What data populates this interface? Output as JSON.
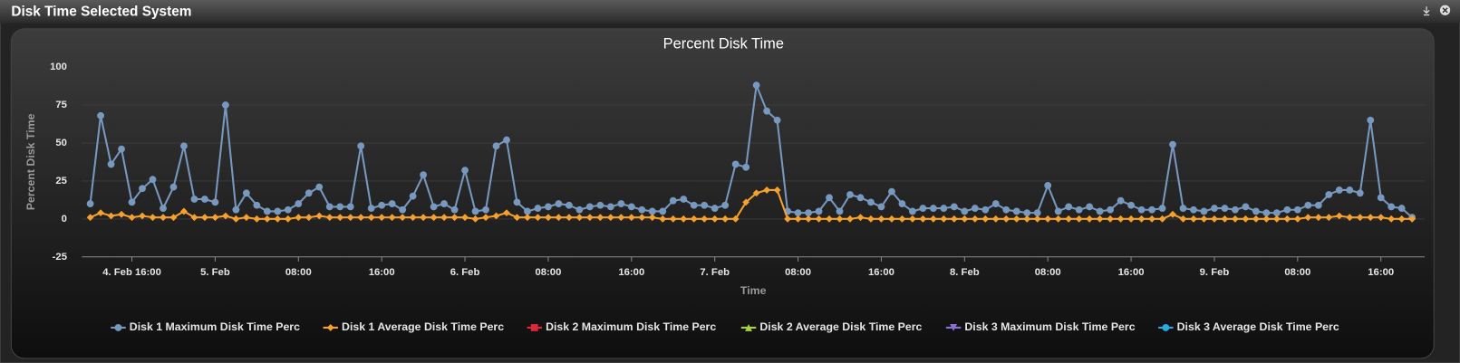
{
  "panel_title": "Disk Time Selected System",
  "chart_data": {
    "type": "line",
    "title": "Percent Disk Time",
    "x_label": "Time",
    "y_label": "Percent Disk Time",
    "xlim": [
      11.2,
      140.2
    ],
    "xticks": [
      {
        "value": 16,
        "label": "4. Feb 16:00"
      },
      {
        "value": 24,
        "label": "5. Feb"
      },
      {
        "value": 32,
        "label": "08:00"
      },
      {
        "value": 40,
        "label": "16:00"
      },
      {
        "value": 48,
        "label": "6. Feb"
      },
      {
        "value": 56,
        "label": "08:00"
      },
      {
        "value": 64,
        "label": "16:00"
      },
      {
        "value": 72,
        "label": "7. Feb"
      },
      {
        "value": 80,
        "label": "08:00"
      },
      {
        "value": 88,
        "label": "16:00"
      },
      {
        "value": 96,
        "label": "8. Feb"
      },
      {
        "value": 104,
        "label": "08:00"
      },
      {
        "value": 112,
        "label": "16:00"
      },
      {
        "value": 120,
        "label": "9. Feb"
      },
      {
        "value": 128,
        "label": "08:00"
      },
      {
        "value": 136,
        "label": "16:00"
      }
    ],
    "ylim": [
      -25,
      100
    ],
    "yticks": [
      -25,
      0,
      25,
      50,
      75,
      100
    ],
    "grid": true,
    "x": [
      12,
      13,
      14,
      15,
      16,
      17,
      18,
      19,
      20,
      21,
      22,
      23,
      24,
      25,
      26,
      27,
      28,
      29,
      30,
      31,
      32,
      33,
      34,
      35,
      36,
      37,
      38,
      39,
      40,
      41,
      42,
      43,
      44,
      45,
      46,
      47,
      48,
      49,
      50,
      51,
      52,
      53,
      54,
      55,
      56,
      57,
      58,
      59,
      60,
      61,
      62,
      63,
      64,
      65,
      66,
      67,
      68,
      69,
      70,
      71,
      72,
      73,
      74,
      75,
      76,
      77,
      78,
      79,
      80,
      81,
      82,
      83,
      84,
      85,
      86,
      87,
      88,
      89,
      90,
      91,
      92,
      93,
      94,
      95,
      96,
      97,
      98,
      99,
      100,
      101,
      102,
      103,
      104,
      105,
      106,
      107,
      108,
      109,
      110,
      111,
      112,
      113,
      114,
      115,
      116,
      117,
      118,
      119,
      120,
      121,
      122,
      123,
      124,
      125,
      126,
      127,
      128,
      129,
      130,
      131,
      132,
      133,
      134,
      135,
      136,
      137,
      138,
      139
    ],
    "series": [
      {
        "name": "Disk 1 Maximum Disk Time Perc",
        "color": "#7798bf",
        "marker": "circle",
        "values": [
          10,
          68,
          36,
          46,
          11,
          20,
          26,
          7,
          21,
          48,
          13,
          13,
          11,
          75,
          6,
          17,
          9,
          5,
          5,
          6,
          10,
          17,
          21,
          8,
          8,
          8,
          48,
          7,
          9,
          10,
          6,
          15,
          29,
          8,
          10,
          6,
          32,
          5,
          6,
          48,
          52,
          11,
          5,
          7,
          8,
          10,
          9,
          6,
          8,
          9,
          8,
          10,
          8,
          6,
          5,
          5,
          12,
          13,
          9,
          9,
          7,
          9,
          36,
          34,
          88,
          71,
          65,
          5,
          4,
          4,
          5,
          14,
          5,
          16,
          14,
          11,
          8,
          18,
          10,
          5,
          7,
          7,
          7,
          8,
          5,
          7,
          6,
          10,
          6,
          5,
          4,
          4,
          22,
          5,
          8,
          6,
          8,
          5,
          6,
          12,
          9,
          6,
          6,
          7,
          49,
          7,
          6,
          5,
          7,
          7,
          6,
          8,
          5,
          4,
          4,
          6,
          6,
          9,
          9,
          16,
          19,
          19,
          17,
          65,
          14,
          8,
          7,
          1
        ]
      },
      {
        "name": "Disk 1 Average Disk Time Perc",
        "color": "#f7a12c",
        "marker": "diamond",
        "values": [
          1,
          4,
          2,
          3,
          1,
          2,
          1,
          1,
          1,
          5,
          1,
          1,
          1,
          2,
          0,
          1,
          0,
          0,
          0,
          0,
          1,
          1,
          2,
          1,
          1,
          1,
          1,
          1,
          1,
          1,
          1,
          1,
          1,
          1,
          1,
          1,
          1,
          0,
          1,
          2,
          4,
          1,
          1,
          1,
          1,
          1,
          1,
          1,
          1,
          1,
          1,
          1,
          1,
          1,
          1,
          0,
          0,
          0,
          0,
          0,
          0,
          0,
          0,
          11,
          17,
          19,
          19,
          0,
          0,
          0,
          0,
          0,
          0,
          0,
          1,
          0,
          0,
          0,
          0,
          0,
          0,
          0,
          0,
          0,
          0,
          0,
          0,
          0,
          0,
          0,
          0,
          0,
          0,
          0,
          0,
          0,
          0,
          0,
          0,
          0,
          0,
          0,
          0,
          0,
          3,
          0,
          0,
          0,
          0,
          0,
          0,
          0,
          0,
          0,
          0,
          0,
          0,
          1,
          1,
          1,
          2,
          1,
          1,
          1,
          1,
          0,
          0,
          0
        ]
      },
      {
        "name": "Disk 2 Maximum Disk Time Perc",
        "color": "#e0273a",
        "marker": "square",
        "values": [
          null,
          null,
          null,
          null,
          null,
          null,
          null,
          null,
          null,
          null,
          null,
          null,
          null,
          null,
          null,
          null,
          null,
          null,
          null,
          null,
          null,
          null,
          null,
          null,
          null,
          null,
          null,
          null,
          null,
          null,
          null,
          null,
          null,
          null,
          null,
          null,
          null,
          null,
          null,
          null,
          null,
          null,
          null,
          null,
          null,
          null,
          null,
          null,
          null,
          null,
          null,
          null,
          null,
          null,
          null,
          null,
          null,
          null,
          null,
          null,
          null,
          null,
          null,
          null,
          null,
          null,
          null,
          null,
          null,
          null,
          null,
          null,
          null,
          null,
          null,
          null,
          null,
          null,
          null,
          null,
          null,
          null,
          null,
          null,
          null,
          null,
          null,
          null,
          null,
          null,
          null,
          null,
          null,
          null,
          null,
          null,
          null,
          null,
          null,
          null,
          null,
          null,
          null,
          null,
          null,
          null,
          null,
          null,
          null,
          null,
          null,
          null,
          null,
          null,
          null,
          null,
          null,
          null,
          null,
          null,
          null,
          null,
          null,
          null,
          null,
          null,
          null,
          null
        ]
      },
      {
        "name": "Disk 2 Average Disk Time Perc",
        "color": "#a6d43a",
        "marker": "triangle",
        "values": [
          null,
          null,
          null,
          null,
          null,
          null,
          null,
          null,
          null,
          null,
          null,
          null,
          null,
          null,
          null,
          null,
          null,
          null,
          null,
          null,
          null,
          null,
          null,
          null,
          null,
          null,
          null,
          null,
          null,
          null,
          null,
          null,
          null,
          null,
          null,
          null,
          null,
          null,
          null,
          null,
          null,
          null,
          null,
          null,
          null,
          null,
          null,
          null,
          null,
          null,
          null,
          null,
          null,
          null,
          null,
          null,
          null,
          null,
          null,
          null,
          null,
          null,
          null,
          null,
          null,
          null,
          null,
          null,
          null,
          null,
          null,
          null,
          null,
          null,
          null,
          null,
          null,
          null,
          null,
          null,
          null,
          null,
          null,
          null,
          null,
          null,
          null,
          null,
          null,
          null,
          null,
          null,
          null,
          null,
          null,
          null,
          null,
          null,
          null,
          null,
          null,
          null,
          null,
          null,
          null,
          null,
          null,
          null,
          null,
          null,
          null,
          null,
          null,
          null,
          null,
          null,
          null,
          null,
          null,
          null,
          null,
          null,
          null,
          null,
          null,
          null,
          null,
          null
        ]
      },
      {
        "name": "Disk 3 Maximum Disk Time Perc",
        "color": "#8a6fd8",
        "marker": "triangle-down",
        "values": [
          null,
          null,
          null,
          null,
          null,
          null,
          null,
          null,
          null,
          null,
          null,
          null,
          null,
          null,
          null,
          null,
          null,
          null,
          null,
          null,
          null,
          null,
          null,
          null,
          null,
          null,
          null,
          null,
          null,
          null,
          null,
          null,
          null,
          null,
          null,
          null,
          null,
          null,
          null,
          null,
          null,
          null,
          null,
          null,
          null,
          null,
          null,
          null,
          null,
          null,
          null,
          null,
          null,
          null,
          null,
          null,
          null,
          null,
          null,
          null,
          null,
          null,
          null,
          null,
          null,
          null,
          null,
          null,
          null,
          null,
          null,
          null,
          null,
          null,
          null,
          null,
          null,
          null,
          null,
          null,
          null,
          null,
          null,
          null,
          null,
          null,
          null,
          null,
          null,
          null,
          null,
          null,
          null,
          null,
          null,
          null,
          null,
          null,
          null,
          null,
          null,
          null,
          null,
          null,
          null,
          null,
          null,
          null,
          null,
          null,
          null,
          null,
          null,
          null,
          null,
          null,
          null,
          null,
          null,
          null,
          null,
          null,
          null,
          null,
          null,
          null,
          null,
          null
        ]
      },
      {
        "name": "Disk 3 Average Disk Time Perc",
        "color": "#29a9e0",
        "marker": "circle",
        "values": [
          null,
          null,
          null,
          null,
          null,
          null,
          null,
          null,
          null,
          null,
          null,
          null,
          null,
          null,
          null,
          null,
          null,
          null,
          null,
          null,
          null,
          null,
          null,
          null,
          null,
          null,
          null,
          null,
          null,
          null,
          null,
          null,
          null,
          null,
          null,
          null,
          null,
          null,
          null,
          null,
          null,
          null,
          null,
          null,
          null,
          null,
          null,
          null,
          null,
          null,
          null,
          null,
          null,
          null,
          null,
          null,
          null,
          null,
          null,
          null,
          null,
          null,
          null,
          null,
          null,
          null,
          null,
          null,
          null,
          null,
          null,
          null,
          null,
          null,
          null,
          null,
          null,
          null,
          null,
          null,
          null,
          null,
          null,
          null,
          null,
          null,
          null,
          null,
          null,
          null,
          null,
          null,
          null,
          null,
          null,
          null,
          null,
          null,
          null,
          null,
          null,
          null,
          null,
          null,
          null,
          null,
          null,
          null,
          null,
          null,
          null,
          null,
          null,
          null,
          null,
          null,
          null,
          null,
          null,
          null,
          null,
          null,
          null,
          null,
          null,
          null,
          null,
          null
        ]
      }
    ]
  }
}
